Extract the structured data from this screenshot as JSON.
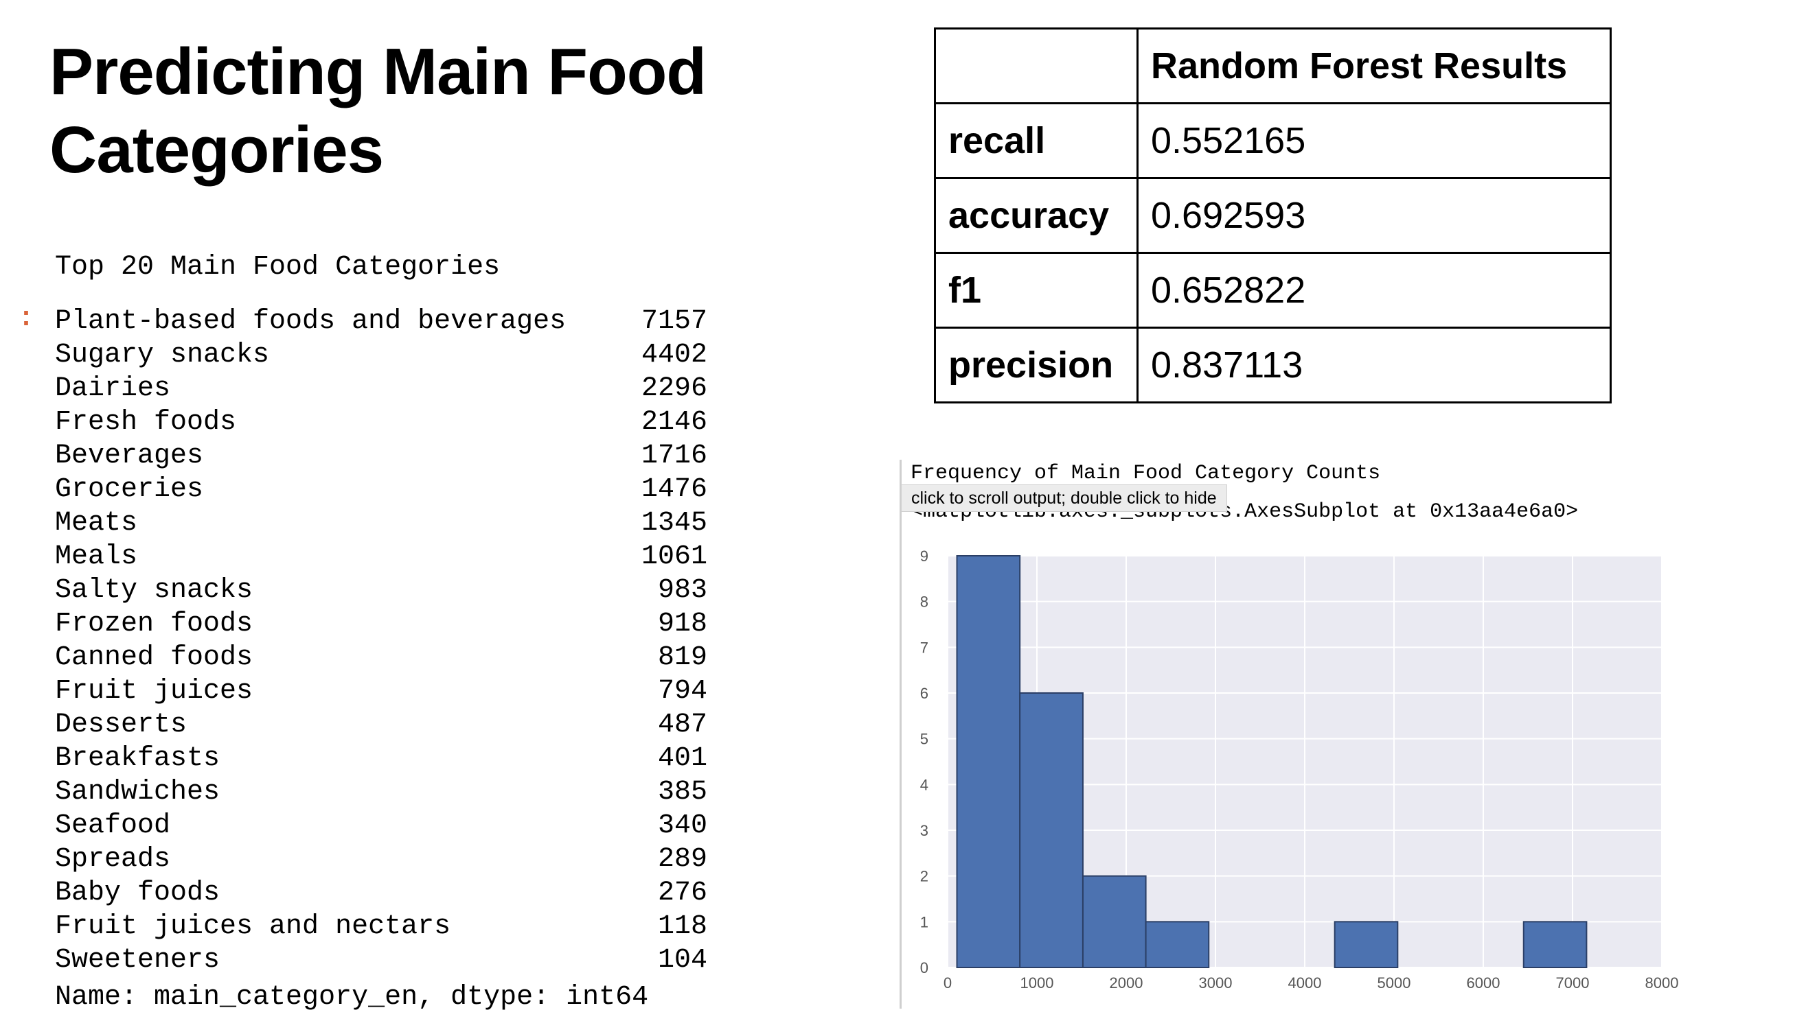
{
  "slide": {
    "title_line1": "Predicting Main Food",
    "title_line2": "Categories"
  },
  "series_listing": {
    "header": "Top 20 Main Food Categories",
    "prompt_marker": ":",
    "rows": [
      {
        "label": "Plant-based foods and beverages",
        "value": "7157"
      },
      {
        "label": "Sugary snacks",
        "value": "4402"
      },
      {
        "label": "Dairies",
        "value": "2296"
      },
      {
        "label": "Fresh foods",
        "value": "2146"
      },
      {
        "label": "Beverages",
        "value": "1716"
      },
      {
        "label": "Groceries",
        "value": "1476"
      },
      {
        "label": "Meats",
        "value": "1345"
      },
      {
        "label": "Meals",
        "value": "1061"
      },
      {
        "label": "Salty snacks",
        "value": "983"
      },
      {
        "label": "Frozen foods",
        "value": "918"
      },
      {
        "label": "Canned foods",
        "value": "819"
      },
      {
        "label": "Fruit juices",
        "value": "794"
      },
      {
        "label": "Desserts",
        "value": "487"
      },
      {
        "label": "Breakfasts",
        "value": "401"
      },
      {
        "label": "Sandwiches",
        "value": "385"
      },
      {
        "label": "Seafood",
        "value": "340"
      },
      {
        "label": "Spreads",
        "value": "289"
      },
      {
        "label": "Baby foods",
        "value": "276"
      },
      {
        "label": "Fruit juices and nectars",
        "value": "118"
      },
      {
        "label": "Sweeteners",
        "value": "104"
      }
    ],
    "footer": "Name: main_category_en, dtype: int64"
  },
  "results_table": {
    "header": "Random Forest Results",
    "rows": [
      {
        "metric": "recall",
        "value": "0.552165"
      },
      {
        "metric": "accuracy",
        "value": "0.692593"
      },
      {
        "metric": "f1",
        "value": "0.652822"
      },
      {
        "metric": "precision",
        "value": "0.837113"
      }
    ]
  },
  "output_cell": {
    "printed_title": "Frequency of Main Food Category Counts",
    "repr_text": "<matplotlib.axes._subplots.AxesSubplot at 0x13aa4e6a0>",
    "tooltip": "click to scroll output; double click to hide"
  },
  "chart_data": {
    "type": "bar",
    "title": "",
    "xlabel": "",
    "ylabel": "",
    "bins": [
      {
        "x0": 104,
        "x1": 809,
        "count": 9
      },
      {
        "x0": 809,
        "x1": 1515,
        "count": 6
      },
      {
        "x0": 1515,
        "x1": 2220,
        "count": 2
      },
      {
        "x0": 2220,
        "x1": 2925,
        "count": 1
      },
      {
        "x0": 2925,
        "x1": 3631,
        "count": 0
      },
      {
        "x0": 3631,
        "x1": 4336,
        "count": 0
      },
      {
        "x0": 4336,
        "x1": 5041,
        "count": 1
      },
      {
        "x0": 5041,
        "x1": 5746,
        "count": 0
      },
      {
        "x0": 5746,
        "x1": 6452,
        "count": 0
      },
      {
        "x0": 6452,
        "x1": 7157,
        "count": 1
      }
    ],
    "xlim": [
      0,
      8000
    ],
    "ylim": [
      0,
      9
    ],
    "xticks": [
      "0",
      "1000",
      "2000",
      "3000",
      "4000",
      "5000",
      "6000",
      "7000",
      "8000"
    ],
    "yticks": [
      "0",
      "1",
      "2",
      "3",
      "4",
      "5",
      "6",
      "7",
      "8",
      "9"
    ],
    "grid": true,
    "bar_color": "#4c72b0",
    "plot_background": "#eaeaf2"
  }
}
